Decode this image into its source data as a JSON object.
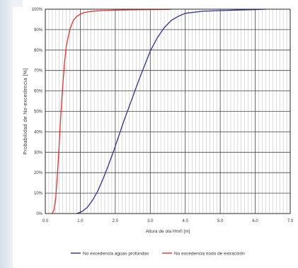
{
  "chart_data": {
    "type": "line",
    "title": "",
    "xlabel": "Altura de ola Hm0 [m]",
    "ylabel": "Probabilidad de No-excedencia [%]",
    "xlim": [
      0.0,
      7.0
    ],
    "ylim": [
      0,
      100
    ],
    "x_ticks": [
      "0.0",
      "1.0",
      "2.0",
      "3.0",
      "4.0",
      "5.0",
      "6.0",
      "7.0"
    ],
    "y_ticks": [
      "0%",
      "10%",
      "20%",
      "30%",
      "40%",
      "50%",
      "60%",
      "70%",
      "80%",
      "90%",
      "100%"
    ],
    "grid": true,
    "legend_position": "bottom",
    "series": [
      {
        "name": "No excedencia aguas profundas",
        "color": "#2e3192",
        "x": [
          0.9,
          1.05,
          1.2,
          1.35,
          1.5,
          1.65,
          1.8,
          1.95,
          2.1,
          2.25,
          2.4,
          2.55,
          2.7,
          2.85,
          3.0,
          3.2,
          3.4,
          3.6,
          3.8,
          4.0,
          4.5,
          5.0,
          5.5,
          6.0,
          6.3
        ],
        "y": [
          0,
          1,
          3,
          6.5,
          11,
          17,
          23.5,
          30.5,
          38,
          45.5,
          52.5,
          59.5,
          66.5,
          73,
          79.5,
          86,
          91,
          94.5,
          96.5,
          98,
          99,
          99.3,
          99.6,
          99.8,
          100
        ]
      },
      {
        "name": "No excedencia nodo de extracción",
        "color": "#e8312e",
        "x": [
          0.2,
          0.25,
          0.3,
          0.35,
          0.4,
          0.45,
          0.5,
          0.55,
          0.6,
          0.7,
          0.8,
          0.9,
          1.0,
          1.1,
          1.3,
          1.6,
          2.0,
          2.5,
          3.0,
          3.5,
          3.6
        ],
        "y": [
          0,
          2,
          8,
          20,
          35,
          50,
          63,
          74,
          82,
          90,
          94.5,
          96.5,
          97.5,
          98.3,
          98.9,
          99.3,
          99.5,
          99.7,
          99.8,
          99.9,
          100
        ]
      }
    ]
  }
}
